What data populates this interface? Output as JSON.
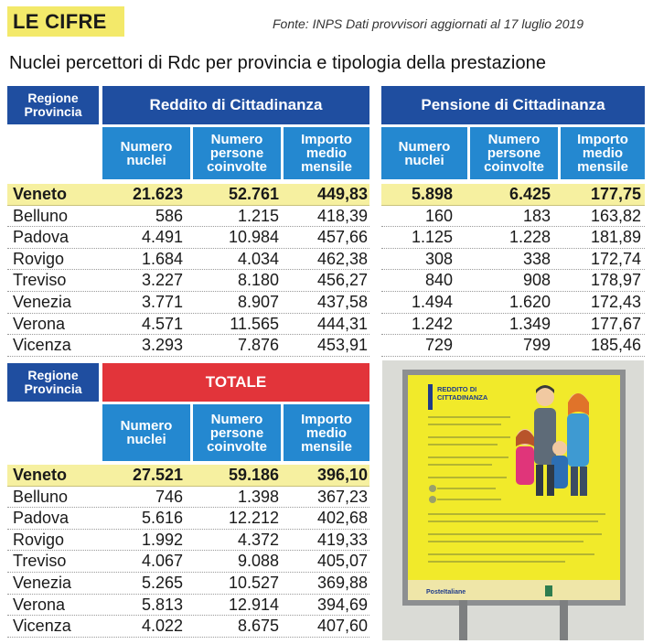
{
  "tag": "LE CIFRE",
  "source": "Fonte: INPS   Dati provvisori aggiornati al 17 luglio 2019",
  "subtitle": "Nuclei percettori di Rdc per provincia e tipologia della prestazione",
  "region_header": "Regione\nProvincia",
  "columns": [
    "Numero\nnuclei",
    "Numero\npersone\ncoinvolte",
    "Importo\nmedio\nmensile"
  ],
  "reddito": {
    "title": "Reddito di Cittadinanza",
    "rows": [
      {
        "name": "Veneto",
        "values": [
          "21.623",
          "52.761",
          "449,83"
        ]
      },
      {
        "name": "Belluno",
        "values": [
          "586",
          "1.215",
          "418,39"
        ]
      },
      {
        "name": "Padova",
        "values": [
          "4.491",
          "10.984",
          "457,66"
        ]
      },
      {
        "name": "Rovigo",
        "values": [
          "1.684",
          "4.034",
          "462,38"
        ]
      },
      {
        "name": "Treviso",
        "values": [
          "3.227",
          "8.180",
          "456,27"
        ]
      },
      {
        "name": "Venezia",
        "values": [
          "3.771",
          "8.907",
          "437,58"
        ]
      },
      {
        "name": "Verona",
        "values": [
          "4.571",
          "11.565",
          "444,31"
        ]
      },
      {
        "name": "Vicenza",
        "values": [
          "3.293",
          "7.876",
          "453,91"
        ]
      }
    ]
  },
  "pensione": {
    "title": "Pensione di Cittadinanza",
    "rows": [
      {
        "values": [
          "5.898",
          "6.425",
          "177,75"
        ]
      },
      {
        "values": [
          "160",
          "183",
          "163,82"
        ]
      },
      {
        "values": [
          "1.125",
          "1.228",
          "181,89"
        ]
      },
      {
        "values": [
          "308",
          "338",
          "172,74"
        ]
      },
      {
        "values": [
          "840",
          "908",
          "178,97"
        ]
      },
      {
        "values": [
          "1.494",
          "1.620",
          "172,43"
        ]
      },
      {
        "values": [
          "1.242",
          "1.349",
          "177,67"
        ]
      },
      {
        "values": [
          "729",
          "799",
          "185,46"
        ]
      }
    ]
  },
  "totale": {
    "title": "TOTALE",
    "rows": [
      {
        "name": "Veneto",
        "values": [
          "27.521",
          "59.186",
          "396,10"
        ]
      },
      {
        "name": "Belluno",
        "values": [
          "746",
          "1.398",
          "367,23"
        ]
      },
      {
        "name": "Padova",
        "values": [
          "5.616",
          "12.212",
          "402,68"
        ]
      },
      {
        "name": "Rovigo",
        "values": [
          "1.992",
          "4.372",
          "419,33"
        ]
      },
      {
        "name": "Treviso",
        "values": [
          "4.067",
          "9.088",
          "405,07"
        ]
      },
      {
        "name": "Venezia",
        "values": [
          "5.265",
          "10.527",
          "369,88"
        ]
      },
      {
        "name": "Verona",
        "values": [
          "5.813",
          "12.914",
          "394,69"
        ]
      },
      {
        "name": "Vicenza",
        "values": [
          "4.022",
          "8.675",
          "407,60"
        ]
      }
    ]
  },
  "poster": {
    "heading": "REDDITO DI\nCITTADINANZA",
    "logo": "PosteItaliane"
  },
  "colors": {
    "accent_blue": "#1f4ea0",
    "column_blue": "#2488d0",
    "total_red": "#e2343a",
    "highlight_yellow": "#f6f0a0",
    "tag_yellow": "#f3e96a"
  }
}
